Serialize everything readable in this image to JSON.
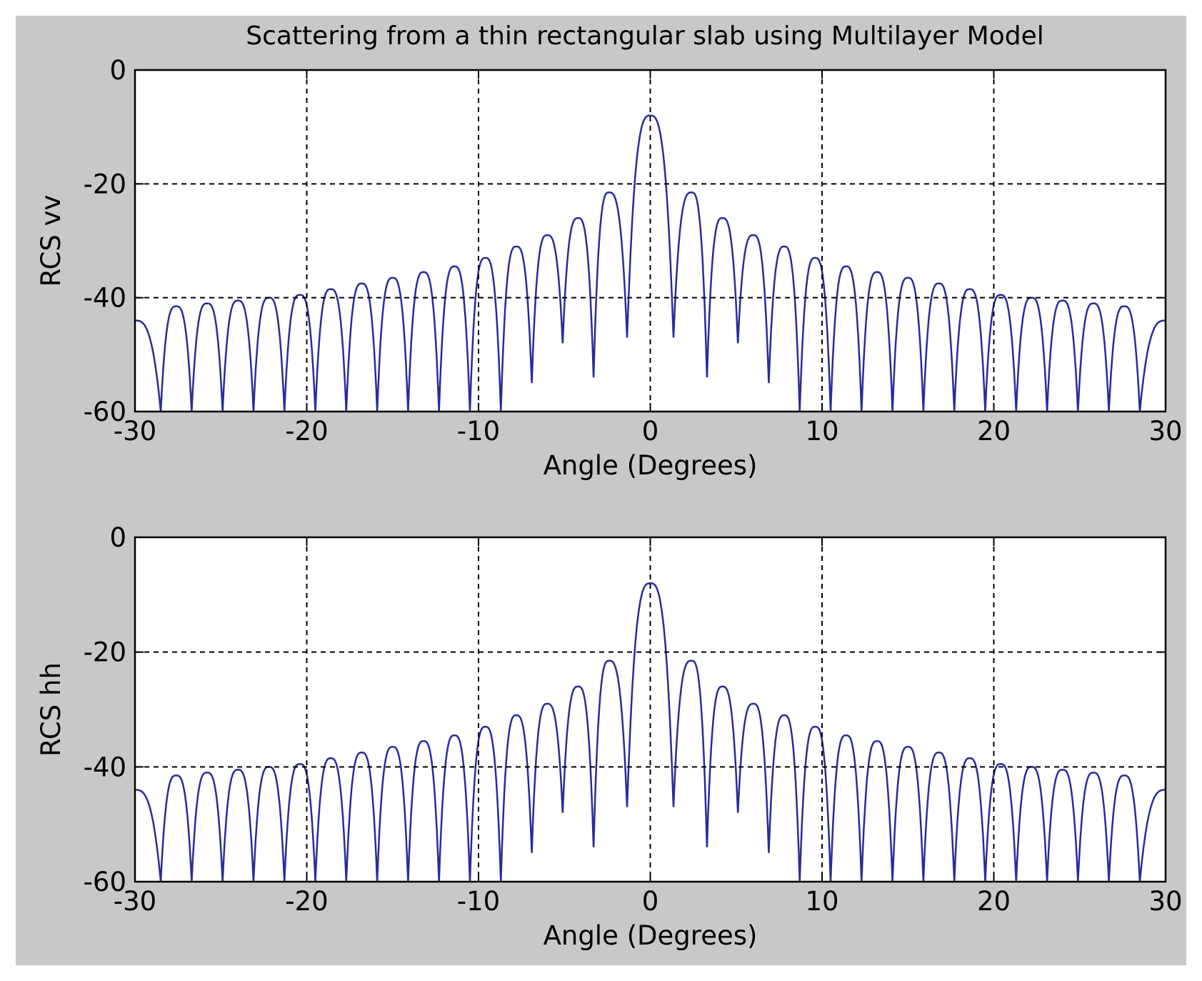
{
  "figure": {
    "background": "#c8c8c8",
    "axes_background": "#ffffff",
    "line_color": "#2b2b9b",
    "grid_color": "#000000"
  },
  "chart_data": [
    {
      "type": "line",
      "title": "Scattering from a thin rectangular slab using Multilayer Model",
      "xlabel": "Angle (Degrees)",
      "ylabel": "RCS vv",
      "xlim": [
        -30,
        30
      ],
      "ylim": [
        -60,
        0
      ],
      "xticks": [
        -30,
        -20,
        -10,
        0,
        10,
        20,
        30
      ],
      "yticks": [
        -60,
        -40,
        -20,
        0
      ],
      "grid": true,
      "series": [
        {
          "peak_x": [
            0,
            -2.4,
            2.4,
            -4.2,
            4.2,
            -6.0,
            6.0,
            -7.8,
            7.8,
            -9.6,
            9.6,
            -11.4,
            11.4,
            -13.2,
            13.2,
            -15.0,
            15.0,
            -16.8,
            16.8,
            -18.6,
            18.6,
            -20.4,
            20.4,
            -22.2,
            22.2,
            -24.0,
            24.0,
            -25.8,
            25.8,
            -27.6,
            27.6
          ],
          "peak_y": [
            -8,
            -21.5,
            -21.5,
            -26,
            -26,
            -29,
            -29,
            -31,
            -31,
            -33,
            -33,
            -34.5,
            -34.5,
            -35.5,
            -35.5,
            -36.5,
            -36.5,
            -37.5,
            -37.5,
            -38.5,
            -38.5,
            -39.5,
            -39.5,
            -40,
            -40,
            -40.5,
            -40.5,
            -41,
            -41,
            -41.5,
            -41.5
          ],
          "null_x": [
            -1.35,
            1.35,
            -3.3,
            3.3,
            -5.1,
            5.1,
            -6.9,
            6.9,
            -8.7,
            8.7,
            -10.5,
            10.5,
            -12.3,
            12.3,
            -14.1,
            14.1,
            -15.9,
            15.9,
            -17.7,
            17.7,
            -19.5,
            19.5,
            -21.3,
            21.3,
            -23.1,
            23.1,
            -24.9,
            24.9,
            -26.7,
            26.7,
            -28.5,
            28.5
          ],
          "null_y": [
            -47,
            -47,
            -54,
            -54,
            -48,
            -48,
            -55,
            -55,
            -60,
            -60,
            -60,
            -60,
            -60,
            -60,
            -60,
            -60,
            -60,
            -60,
            -60,
            -60,
            -60,
            -60,
            -60,
            -60,
            -60,
            -60,
            -60,
            -60,
            -60,
            -60,
            -60,
            -60
          ],
          "edge_y": [
            -44,
            -44
          ]
        }
      ]
    },
    {
      "type": "line",
      "title": "",
      "xlabel": "Angle (Degrees)",
      "ylabel": "RCS hh",
      "xlim": [
        -30,
        30
      ],
      "ylim": [
        -60,
        0
      ],
      "xticks": [
        -30,
        -20,
        -10,
        0,
        10,
        20,
        30
      ],
      "yticks": [
        -60,
        -40,
        -20,
        0
      ],
      "grid": true,
      "series": [
        {
          "peak_x": [
            0,
            -2.4,
            2.4,
            -4.2,
            4.2,
            -6.0,
            6.0,
            -7.8,
            7.8,
            -9.6,
            9.6,
            -11.4,
            11.4,
            -13.2,
            13.2,
            -15.0,
            15.0,
            -16.8,
            16.8,
            -18.6,
            18.6,
            -20.4,
            20.4,
            -22.2,
            22.2,
            -24.0,
            24.0,
            -25.8,
            25.8,
            -27.6,
            27.6
          ],
          "peak_y": [
            -8,
            -21.5,
            -21.5,
            -26,
            -26,
            -29,
            -29,
            -31,
            -31,
            -33,
            -33,
            -34.5,
            -34.5,
            -35.5,
            -35.5,
            -36.5,
            -36.5,
            -37.5,
            -37.5,
            -38.5,
            -38.5,
            -39.5,
            -39.5,
            -40,
            -40,
            -40.5,
            -40.5,
            -41,
            -41,
            -41.5,
            -41.5
          ],
          "null_x": [
            -1.35,
            1.35,
            -3.3,
            3.3,
            -5.1,
            5.1,
            -6.9,
            6.9,
            -8.7,
            8.7,
            -10.5,
            10.5,
            -12.3,
            12.3,
            -14.1,
            14.1,
            -15.9,
            15.9,
            -17.7,
            17.7,
            -19.5,
            19.5,
            -21.3,
            21.3,
            -23.1,
            23.1,
            -24.9,
            24.9,
            -26.7,
            26.7,
            -28.5,
            28.5
          ],
          "null_y": [
            -47,
            -47,
            -54,
            -54,
            -48,
            -48,
            -55,
            -55,
            -60,
            -60,
            -60,
            -60,
            -60,
            -60,
            -60,
            -60,
            -60,
            -60,
            -60,
            -60,
            -60,
            -60,
            -60,
            -60,
            -60,
            -60,
            -60,
            -60,
            -60,
            -60,
            -60,
            -60
          ],
          "edge_y": [
            -44,
            -44
          ]
        }
      ]
    }
  ]
}
